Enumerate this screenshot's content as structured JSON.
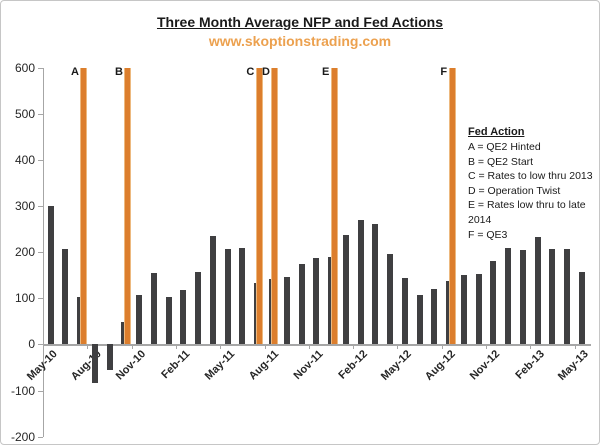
{
  "header": {
    "title": "Three Month Average NFP and Fed Actions",
    "subtitle": "www.skoptionstrading.com"
  },
  "colors": {
    "bar": "#3f3f41",
    "fed_line": "#dc7e2d",
    "subtitle_orange": "#eca14f",
    "axis": "#a6a6a6",
    "label_text": "#262626"
  },
  "legend": {
    "heading": "Fed Action",
    "items": [
      "A = QE2 Hinted",
      "B = QE2 Start",
      "C = Rates to low thru 2013",
      "D = Operation Twist",
      "E = Rates low thru to late 2014",
      "F = QE3"
    ]
  },
  "chart_data": {
    "type": "bar",
    "title": "Three Month Average NFP and Fed Actions",
    "xlabel": "",
    "ylabel": "",
    "grid": false,
    "ylim": [
      -200,
      600
    ],
    "y_ticks": [
      600,
      500,
      400,
      300,
      200,
      100,
      0,
      -100,
      -200
    ],
    "categories": [
      "May-10",
      "Jun-10",
      "Jul-10",
      "Aug-10",
      "Sep-10",
      "Oct-10",
      "Nov-10",
      "Dec-10",
      "Jan-11",
      "Feb-11",
      "Mar-11",
      "Apr-11",
      "May-11",
      "Jun-11",
      "Jul-11",
      "Aug-11",
      "Sep-11",
      "Oct-11",
      "Nov-11",
      "Dec-11",
      "Jan-12",
      "Feb-12",
      "Mar-12",
      "Apr-12",
      "May-12",
      "Jun-12",
      "Jul-12",
      "Aug-12",
      "Sep-12",
      "Oct-12",
      "Nov-12",
      "Dec-12",
      "Jan-13",
      "Feb-13",
      "Mar-13",
      "Apr-13",
      "May-13"
    ],
    "values": [
      300,
      206,
      102,
      -83,
      -56,
      48,
      107,
      155,
      102,
      119,
      157,
      235,
      206,
      208,
      134,
      141,
      147,
      175,
      188,
      190,
      237,
      269,
      260,
      196,
      144,
      107,
      121,
      137,
      150,
      152,
      180,
      208,
      204,
      233,
      206,
      207,
      156
    ],
    "x_tick_labels": [
      "May-10",
      "Aug-10",
      "Nov-10",
      "Feb-11",
      "May-11",
      "Aug-11",
      "Nov-11",
      "Feb-12",
      "May-12",
      "Aug-12",
      "Nov-12",
      "Feb-13",
      "May-13"
    ],
    "fed_actions": [
      {
        "letter": "A",
        "event": "QE2 Hinted",
        "month_position": 2.26
      },
      {
        "letter": "B",
        "event": "QE2 Start",
        "month_position": 5.24
      },
      {
        "letter": "C",
        "event": "Rates to low thru 2013",
        "month_position": 14.14
      },
      {
        "letter": "D",
        "event": "Operation Twist",
        "month_position": 15.2
      },
      {
        "letter": "E",
        "event": "Rates low thru to late 2014",
        "month_position": 19.22
      },
      {
        "letter": "F",
        "event": "QE3",
        "month_position": 27.2
      }
    ]
  }
}
